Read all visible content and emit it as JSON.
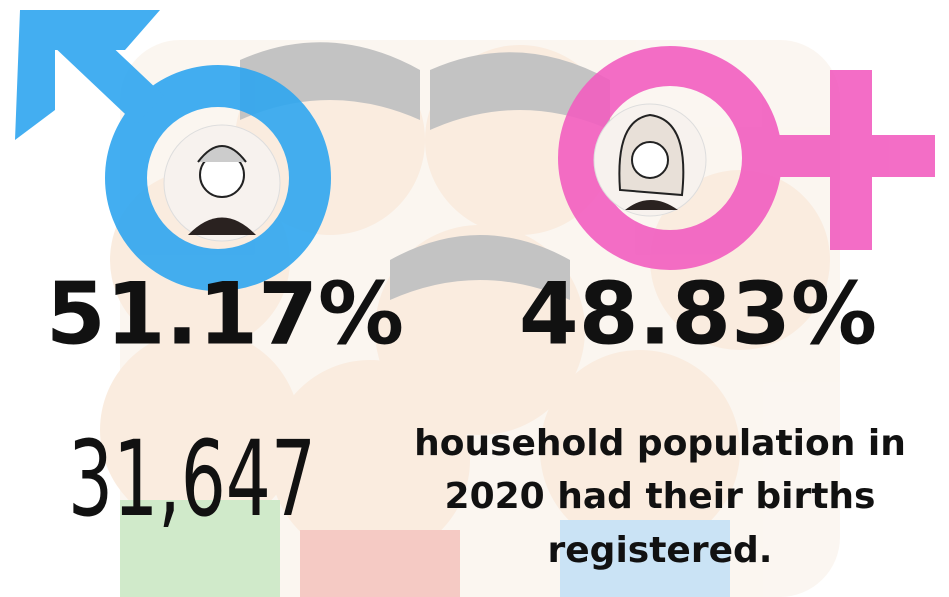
{
  "stats": {
    "male_percent": "51.17%",
    "female_percent": "48.83%",
    "registered_count": "31,647",
    "description_lines": [
      "household population in",
      "2020 had their births",
      "registered."
    ]
  }
}
